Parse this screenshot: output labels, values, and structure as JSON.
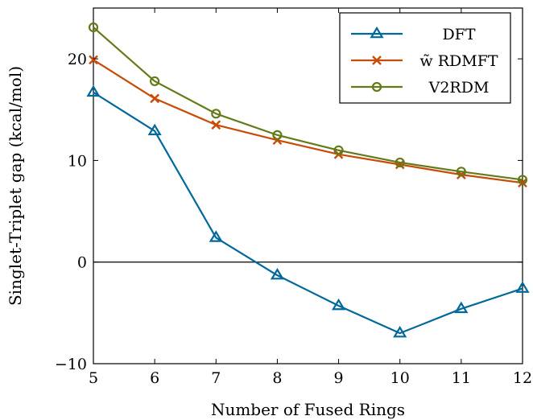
{
  "chart_data": {
    "type": "line",
    "title": "",
    "xlabel": "Number of Fused Rings",
    "ylabel": "Singlet-Triplet gap (kcal/mol)",
    "xlim": [
      5,
      12
    ],
    "ylim": [
      -10,
      25
    ],
    "x_ticks": [
      5,
      6,
      7,
      8,
      9,
      10,
      11,
      12
    ],
    "y_ticks": [
      -10,
      0,
      10,
      20
    ],
    "x_tick_labels": [
      "5",
      "6",
      "7",
      "8",
      "9",
      "10",
      "11",
      "12"
    ],
    "y_tick_labels": [
      "−10",
      "0",
      "10",
      "20"
    ],
    "grid": false,
    "zero_line": true,
    "legend_position": "top-right",
    "x": [
      5,
      6,
      7,
      8,
      9,
      10,
      11,
      12
    ],
    "series": [
      {
        "name": "DFT",
        "color": "#00689a",
        "marker": "triangle",
        "values": [
          16.7,
          12.9,
          2.4,
          -1.3,
          -4.3,
          -7.0,
          -4.6,
          -2.6
        ]
      },
      {
        "name": "w̃ RDMFT",
        "color": "#c84b07",
        "marker": "x",
        "values": [
          19.9,
          16.1,
          13.5,
          12.0,
          10.6,
          9.6,
          8.6,
          7.8
        ]
      },
      {
        "name": "V2RDM",
        "color": "#637a19",
        "marker": "circle",
        "values": [
          23.1,
          17.8,
          14.6,
          12.5,
          11.0,
          9.8,
          8.9,
          8.1
        ]
      }
    ]
  }
}
